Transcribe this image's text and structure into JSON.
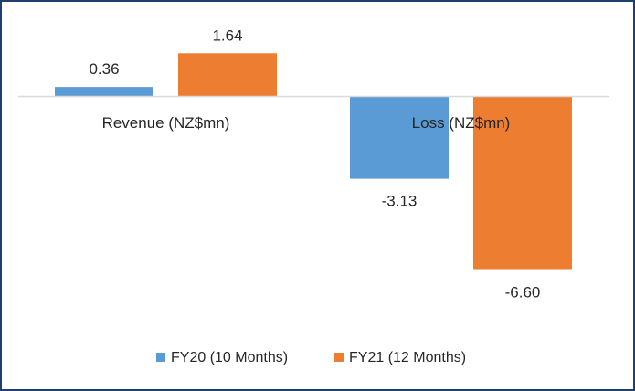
{
  "chart_data": {
    "type": "bar",
    "categories": [
      "Revenue (NZ$mn)",
      "Loss (NZ$mn)"
    ],
    "series": [
      {
        "name": "FY20 (10 Months)",
        "values": [
          0.36,
          -3.13
        ],
        "labels": [
          "0.36",
          "-3.13"
        ],
        "color": "#5b9bd5"
      },
      {
        "name": "FY21 (12 Months)",
        "values": [
          1.64,
          -6.6
        ],
        "labels": [
          "1.64",
          "-6.60"
        ],
        "color": "#ed7d31"
      }
    ],
    "ylim": [
      -6.6,
      1.64
    ],
    "grid": false,
    "legend_position": "bottom",
    "axis_color": "#d9d9d9",
    "frame_color": "#1f3f6e"
  }
}
